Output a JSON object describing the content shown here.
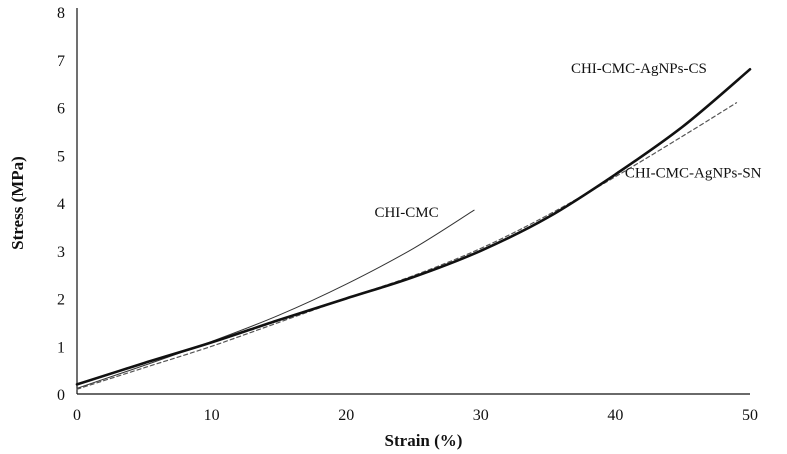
{
  "chart_data": {
    "type": "line",
    "xlabel": "Strain (%)",
    "ylabel": "Stress (MPa)",
    "xlim": [
      0,
      50
    ],
    "ylim": [
      0,
      8
    ],
    "x_ticks": [
      "0",
      "10",
      "20",
      "30",
      "40",
      "50"
    ],
    "y_ticks": [
      "0",
      "1",
      "2",
      "3",
      "4",
      "5",
      "6",
      "7",
      "8"
    ],
    "grid": false,
    "legend": "none (series labeled directly on curves)",
    "series": [
      {
        "name": "CHI-CMC-AgNPs-CS",
        "style": "solid-thick",
        "color": "#111111",
        "x": [
          0,
          5,
          10,
          15,
          20,
          25,
          30,
          35,
          40,
          45,
          50
        ],
        "y": [
          0.2,
          0.65,
          1.08,
          1.55,
          2.0,
          2.45,
          3.0,
          3.7,
          4.6,
          5.6,
          6.8
        ]
      },
      {
        "name": "CHI-CMC-AgNPs-SN",
        "style": "dashed",
        "color": "#555555",
        "x": [
          0,
          5,
          10,
          15,
          20,
          25,
          30,
          35,
          40,
          45,
          49
        ],
        "y": [
          0.1,
          0.55,
          1.0,
          1.5,
          2.0,
          2.48,
          3.05,
          3.75,
          4.55,
          5.4,
          6.1
        ]
      },
      {
        "name": "CHI-CMC",
        "style": "solid-thin",
        "color": "#333333",
        "x": [
          0,
          5,
          10,
          15,
          20,
          25,
          29.5
        ],
        "y": [
          0.12,
          0.6,
          1.1,
          1.65,
          2.3,
          3.05,
          3.85
        ]
      }
    ]
  }
}
